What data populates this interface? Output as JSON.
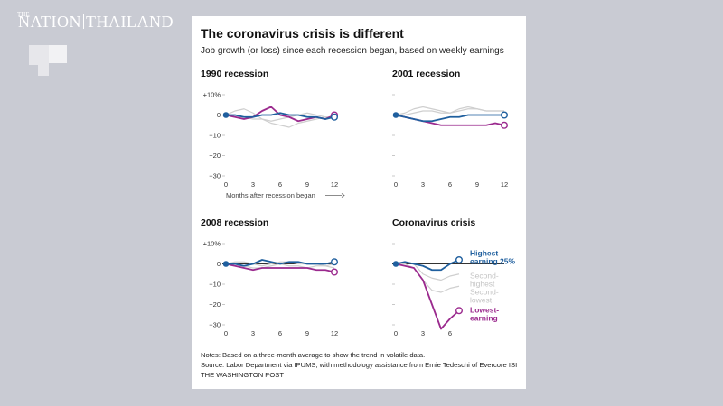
{
  "logo": {
    "small": "THE",
    "part1": "NATION",
    "part2": "THAILAND"
  },
  "title": "The coronavirus crisis is different",
  "subtitle": "Job growth (or loss) since each recession began, based on weekly earnings",
  "xaxis_note": "Months after recession began",
  "notes": "Notes: Based on a three-month average to show the trend in volatile data.",
  "source": "Source: Labor Department via IPUMS, with methodology assistance from Ernie Tedeschi of Evercore ISI",
  "credit": "THE WASHINGTON POST",
  "colors": {
    "highest": "#1f5f9e",
    "lowest": "#9b2a8e",
    "other": "#cfcfcf",
    "zero": "#333333"
  },
  "chart_data": [
    {
      "type": "line",
      "title": "1990 recession",
      "ylim": [
        -30,
        10
      ],
      "yticks": [
        10,
        0,
        -10,
        -20,
        -30
      ],
      "ytick_labels": [
        "+10%",
        "0",
        "−10",
        "−20",
        "−30"
      ],
      "xticks": [
        0,
        3,
        6,
        9,
        12
      ],
      "series": [
        {
          "key": "second",
          "x": [
            0,
            1,
            2,
            3,
            4,
            5,
            6,
            7,
            8,
            9,
            10,
            11,
            12
          ],
          "values": [
            0,
            2,
            3,
            1,
            -2,
            -4,
            -5,
            -6,
            -4,
            -3,
            -2,
            -1,
            -1
          ]
        },
        {
          "key": "second_lowest",
          "x": [
            0,
            1,
            2,
            3,
            4,
            5,
            6,
            7,
            8,
            9,
            10,
            11,
            12
          ],
          "values": [
            0,
            -1,
            -1,
            -2,
            -2,
            -3,
            -2,
            -1,
            0,
            1,
            0,
            -1,
            -1
          ]
        },
        {
          "key": "lowest",
          "x": [
            0,
            1,
            2,
            3,
            4,
            5,
            6,
            7,
            8,
            9,
            10,
            11,
            12
          ],
          "values": [
            0,
            -1,
            -2,
            -1,
            2,
            4,
            0,
            -1,
            -3,
            -2,
            -1,
            -2,
            0
          ]
        },
        {
          "key": "highest",
          "x": [
            0,
            1,
            2,
            3,
            4,
            5,
            6,
            7,
            8,
            9,
            10,
            11,
            12
          ],
          "values": [
            0,
            0,
            -1,
            -1,
            0,
            0,
            1,
            0,
            0,
            -1,
            -1,
            -2,
            -1
          ]
        }
      ]
    },
    {
      "type": "line",
      "title": "2001 recession",
      "ylim": [
        -30,
        10
      ],
      "yticks": [
        10,
        0,
        -10,
        -20,
        -30
      ],
      "xticks": [
        0,
        3,
        6,
        9,
        12
      ],
      "series": [
        {
          "key": "second",
          "x": [
            0,
            1,
            2,
            3,
            4,
            5,
            6,
            7,
            8,
            9,
            10,
            11,
            12
          ],
          "values": [
            0,
            1,
            3,
            4,
            3,
            2,
            1,
            3,
            4,
            3,
            2,
            2,
            2
          ]
        },
        {
          "key": "second_lowest",
          "x": [
            0,
            1,
            2,
            3,
            4,
            5,
            6,
            7,
            8,
            9,
            10,
            11,
            12
          ],
          "values": [
            0,
            0,
            1,
            2,
            2,
            1,
            1,
            2,
            3,
            3,
            2,
            2,
            2
          ]
        },
        {
          "key": "highest",
          "x": [
            0,
            1,
            2,
            3,
            4,
            5,
            6,
            7,
            8,
            9,
            10,
            11,
            12
          ],
          "values": [
            0,
            -1,
            -2,
            -3,
            -3,
            -2,
            -1,
            -1,
            0,
            0,
            0,
            0,
            0
          ]
        },
        {
          "key": "lowest",
          "x": [
            0,
            1,
            2,
            3,
            4,
            5,
            6,
            7,
            8,
            9,
            10,
            11,
            12
          ],
          "values": [
            0,
            -1,
            -2,
            -3,
            -4,
            -5,
            -5,
            -5,
            -5,
            -5,
            -5,
            -4,
            -5
          ]
        }
      ]
    },
    {
      "type": "line",
      "title": "2008 recession",
      "ylim": [
        -30,
        10
      ],
      "yticks": [
        10,
        0,
        -10,
        -20,
        -30
      ],
      "ytick_labels": [
        "+10%",
        "0",
        "−10",
        "−20",
        "−30"
      ],
      "xticks": [
        0,
        3,
        6,
        9,
        12
      ],
      "series": [
        {
          "key": "second",
          "x": [
            0,
            1,
            2,
            3,
            4,
            5,
            6,
            7,
            8,
            9,
            10,
            11,
            12
          ],
          "values": [
            0,
            1,
            1,
            0,
            -1,
            0,
            1,
            1,
            0,
            0,
            0,
            -1,
            0
          ]
        },
        {
          "key": "second_lowest",
          "x": [
            0,
            1,
            2,
            3,
            4,
            5,
            6,
            7,
            8,
            9,
            10,
            11,
            12
          ],
          "values": [
            0,
            -1,
            -1,
            -2,
            -2,
            -1,
            0,
            -1,
            -1,
            -2,
            -1,
            -1,
            -2
          ]
        },
        {
          "key": "highest",
          "x": [
            0,
            1,
            2,
            3,
            4,
            5,
            6,
            7,
            8,
            9,
            10,
            11,
            12
          ],
          "values": [
            0,
            0,
            -1,
            0,
            2,
            1,
            0,
            1,
            1,
            0,
            0,
            0,
            1
          ]
        },
        {
          "key": "lowest",
          "x": [
            0,
            1,
            2,
            3,
            4,
            5,
            6,
            7,
            8,
            9,
            10,
            11,
            12
          ],
          "values": [
            0,
            -1,
            -2,
            -3,
            -2,
            -2,
            -2,
            -2,
            -2,
            -2,
            -3,
            -3,
            -4
          ]
        }
      ]
    },
    {
      "type": "line",
      "title": "Coronavirus crisis",
      "ylim": [
        -30,
        10
      ],
      "yticks": [
        10,
        0,
        -10,
        -20,
        -30
      ],
      "xticks": [
        0,
        3,
        6
      ],
      "series": [
        {
          "key": "second",
          "name": "Second-highest",
          "x": [
            0,
            1,
            2,
            3,
            4,
            5,
            6,
            7
          ],
          "values": [
            0,
            1,
            0,
            -5,
            -7,
            -8,
            -6,
            -5
          ]
        },
        {
          "key": "second_lowest",
          "name": "Second-lowest",
          "x": [
            0,
            1,
            2,
            3,
            4,
            5,
            6,
            7
          ],
          "values": [
            0,
            0,
            -2,
            -8,
            -13,
            -14,
            -12,
            -11
          ]
        },
        {
          "key": "highest",
          "name": "Highest-earning 25%",
          "x": [
            0,
            1,
            2,
            3,
            4,
            5,
            6,
            7
          ],
          "values": [
            0,
            1,
            0,
            -1,
            -3,
            -3,
            0,
            2
          ]
        },
        {
          "key": "lowest",
          "name": "Lowest-earning",
          "x": [
            0,
            1,
            2,
            3,
            4,
            5,
            6,
            7
          ],
          "values": [
            0,
            -1,
            -2,
            -8,
            -20,
            -32,
            -27,
            -23
          ]
        }
      ],
      "labels": {
        "highest": [
          "Highest-",
          "earning 25%"
        ],
        "second": [
          "Second-",
          "highest"
        ],
        "second_lowest": [
          "Second-",
          "lowest"
        ],
        "lowest": [
          "Lowest-",
          "earning"
        ]
      }
    }
  ]
}
